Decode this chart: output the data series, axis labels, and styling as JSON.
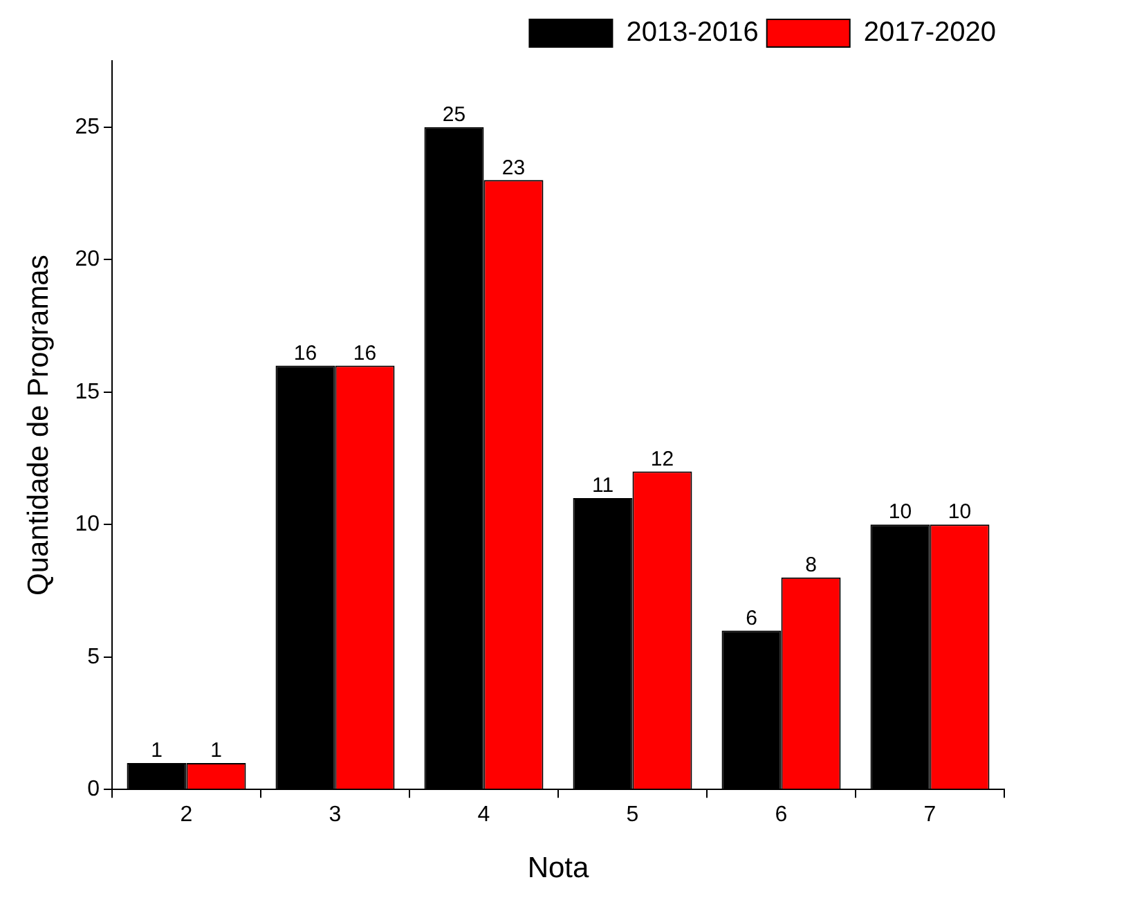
{
  "chart_data": {
    "type": "bar",
    "xlabel": "Nota",
    "ylabel": "Quantidade de Programas",
    "categories": [
      "2",
      "3",
      "4",
      "5",
      "6",
      "7"
    ],
    "series": [
      {
        "name": "2013-2016",
        "color": "#000000",
        "values": [
          1,
          16,
          25,
          11,
          6,
          10
        ]
      },
      {
        "name": "2017-2020",
        "color": "#ff0000",
        "values": [
          1,
          16,
          23,
          12,
          8,
          10
        ]
      }
    ],
    "ylim": [
      0,
      27.5
    ],
    "yticks": [
      0,
      5,
      10,
      15,
      20,
      25
    ],
    "grid": false,
    "legend": "top right",
    "data_labels": true
  }
}
